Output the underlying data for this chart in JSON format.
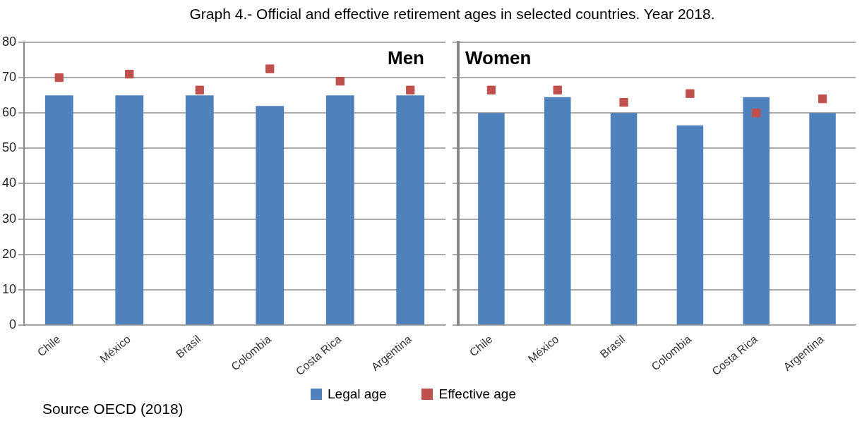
{
  "chart_data": [
    {
      "type": "bar",
      "title": "Graph 4.- Official and effective retirement ages in selected countries. Year 2018.",
      "subtitle": "Men",
      "categories": [
        "Chile",
        "México",
        "Brasil",
        "Colombia",
        "Costa Rica",
        "Argentina"
      ],
      "series": [
        {
          "name": "Legal age",
          "type": "bar",
          "color": "#4f81bd",
          "values": [
            65,
            65,
            65,
            62,
            65,
            65
          ]
        },
        {
          "name": "Effective age",
          "type": "scatter",
          "color": "#c0504d",
          "values": [
            70,
            71,
            66.5,
            72.5,
            69,
            66.5
          ]
        }
      ],
      "ylim": [
        0,
        80
      ],
      "yticks": [
        0,
        10,
        20,
        30,
        40,
        50,
        60,
        70,
        80
      ],
      "grid": "y",
      "marker": "square",
      "legend": "bottom",
      "annotations": [
        "Source OECD (2018)"
      ]
    },
    {
      "type": "bar",
      "subtitle": "Women",
      "categories": [
        "Chile",
        "México",
        "Brasil",
        "Colombia",
        "Costa Rica",
        "Argentina"
      ],
      "series": [
        {
          "name": "Legal age",
          "type": "bar",
          "color": "#4f81bd",
          "values": [
            60,
            64.5,
            60,
            56.5,
            64.5,
            60
          ]
        },
        {
          "name": "Effective age",
          "type": "scatter",
          "color": "#c0504d",
          "values": [
            66.5,
            66.5,
            63,
            65.5,
            60,
            64
          ]
        }
      ],
      "ylim": [
        0,
        80
      ],
      "yticks": [
        0,
        10,
        20,
        30,
        40,
        50,
        60,
        70,
        80
      ],
      "grid": "y",
      "marker": "square",
      "tick_labels": "x"
    }
  ]
}
